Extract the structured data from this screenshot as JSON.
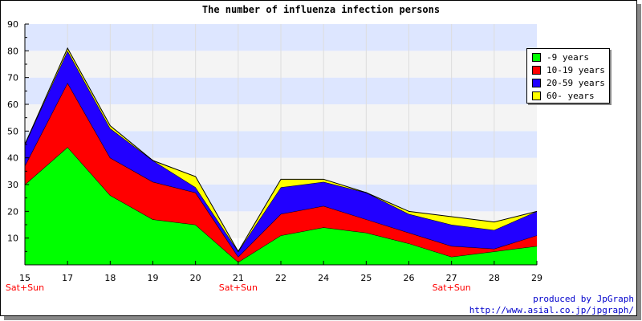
{
  "chart_data": {
    "type": "area",
    "stacked": true,
    "title": "The number of influenza infection persons",
    "xlabel": "",
    "ylabel": "",
    "categories": [
      "15",
      "17",
      "18",
      "19",
      "20",
      "21",
      "22",
      "24",
      "25",
      "26",
      "27",
      "28",
      "29"
    ],
    "weekend_note": "Sat+Sun",
    "weekend_categories": [
      "15",
      "21",
      "27"
    ],
    "ylim": [
      0,
      90
    ],
    "yticks": [
      10,
      20,
      30,
      40,
      50,
      60,
      70,
      80,
      90
    ],
    "grid": true,
    "legend_position": "top-right",
    "series": [
      {
        "name": "-9 years",
        "color": "#00ff00",
        "values": [
          30,
          44,
          26,
          17,
          15,
          1,
          11,
          14,
          12,
          8,
          3,
          5,
          7
        ]
      },
      {
        "name": "10-19 years",
        "color": "#ff0000",
        "values": [
          7,
          24,
          14,
          14,
          12,
          2,
          8,
          8,
          5,
          4,
          4,
          1,
          4
        ]
      },
      {
        "name": "20-59 years",
        "color": "#2200ff",
        "values": [
          8,
          12,
          11,
          8,
          2,
          2,
          10,
          9,
          10,
          7,
          8,
          7,
          9
        ]
      },
      {
        "name": "60- years",
        "color": "#ffff00",
        "values": [
          0,
          1,
          1,
          0,
          4,
          0,
          3,
          1,
          0,
          1,
          3,
          3,
          0
        ]
      }
    ]
  },
  "footer": {
    "produced_by": "produced by JpGraph",
    "url": "http://www.asial.co.jp/jpgraph/"
  }
}
